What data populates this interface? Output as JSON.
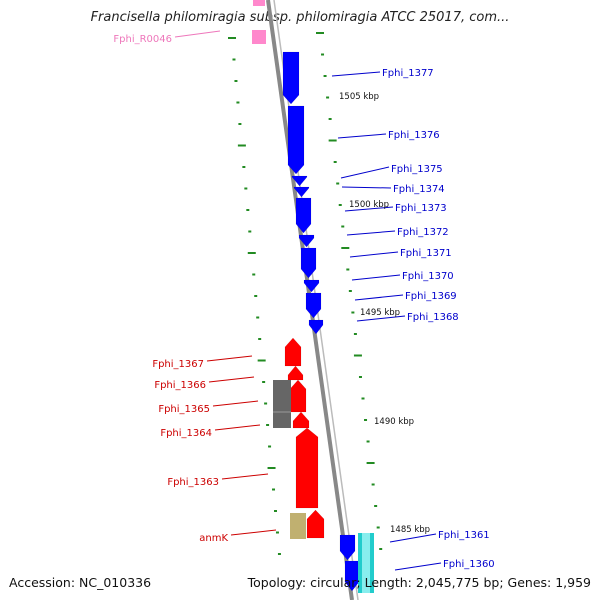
{
  "title": "Francisella philomiragia subsp. philomiragia ATCC 25017, com...",
  "footer": {
    "accession": "Accession: NC_010336",
    "topology": "Topology: circular; Length: 2,045,775 bp; Genes: 1,959"
  },
  "colors": {
    "forward_genes": "#0000ff",
    "reverse_genes": "#ff0000",
    "rna": "#ff88cc",
    "pseudo": "#666666",
    "other": "#c0b070",
    "highlight": "#22cccc",
    "label_forward": "#0000cc",
    "label_reverse": "#cc0000",
    "label_rna": "#ee77bb",
    "backbone": "#888888",
    "ticks": "#228b22"
  },
  "kbp_labels": [
    "1505 kbp",
    "1500 kbp",
    "1495 kbp",
    "1490 kbp",
    "1485 kbp"
  ],
  "genes": [
    {
      "name": "Fphi_R0046",
      "kind": "rna"
    },
    {
      "name": "Fphi_1377",
      "kind": "forward"
    },
    {
      "name": "Fphi_1376",
      "kind": "forward"
    },
    {
      "name": "Fphi_1375",
      "kind": "forward"
    },
    {
      "name": "Fphi_1374",
      "kind": "forward"
    },
    {
      "name": "Fphi_1373",
      "kind": "forward"
    },
    {
      "name": "Fphi_1372",
      "kind": "forward"
    },
    {
      "name": "Fphi_1371",
      "kind": "forward"
    },
    {
      "name": "Fphi_1370",
      "kind": "forward"
    },
    {
      "name": "Fphi_1369",
      "kind": "forward"
    },
    {
      "name": "Fphi_1368",
      "kind": "forward"
    },
    {
      "name": "Fphi_1367",
      "kind": "reverse"
    },
    {
      "name": "Fphi_1366",
      "kind": "reverse"
    },
    {
      "name": "Fphi_1365",
      "kind": "reverse"
    },
    {
      "name": "Fphi_1364",
      "kind": "reverse"
    },
    {
      "name": "Fphi_1363",
      "kind": "reverse"
    },
    {
      "name": "anmK",
      "kind": "reverse"
    },
    {
      "name": "Fphi_1361",
      "kind": "forward"
    },
    {
      "name": "Fphi_1360",
      "kind": "forward"
    }
  ]
}
